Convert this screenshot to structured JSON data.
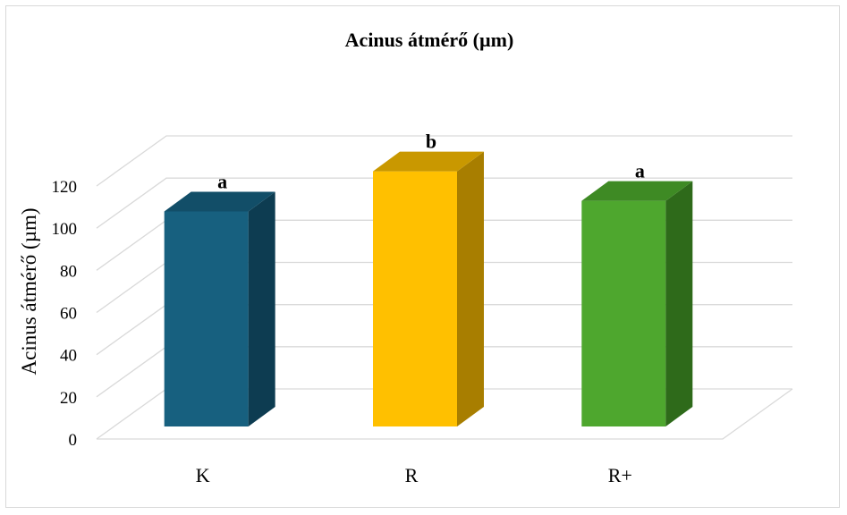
{
  "chart_data": {
    "type": "bar",
    "title": "Acinus átmérő (µm)",
    "xlabel": "",
    "ylabel": "Acinus átmérő (µm)",
    "ylim": [
      0,
      120
    ],
    "yticks": [
      0,
      20,
      40,
      60,
      80,
      100,
      120
    ],
    "grid": true,
    "three_d": true,
    "categories": [
      "K",
      "R",
      "R+"
    ],
    "values": [
      102,
      121,
      107
    ],
    "annotations": [
      "a",
      "b",
      "a"
    ],
    "colors": {
      "front": [
        "#17607F",
        "#FFC000",
        "#4EA72E"
      ],
      "side": [
        "#0D3C51",
        "#A87E00",
        "#2E6A1A"
      ],
      "top": [
        "#124E68",
        "#C99800",
        "#3E8A24"
      ]
    }
  }
}
